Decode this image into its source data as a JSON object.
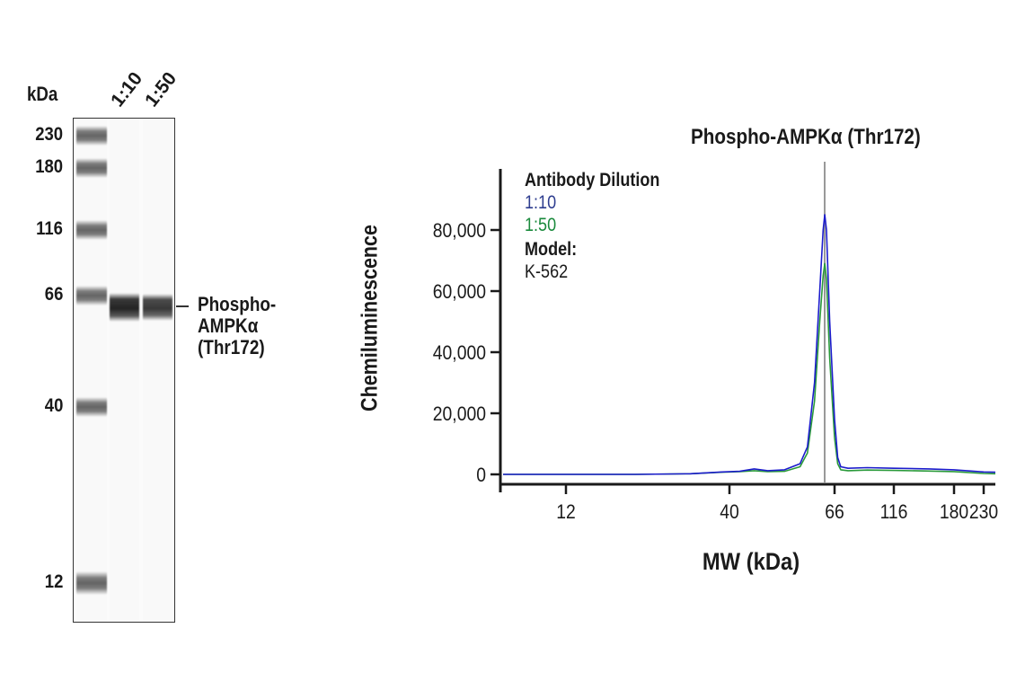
{
  "gel": {
    "unit_label": "kDa",
    "lanes": [
      "1:10",
      "1:50"
    ],
    "markers": [
      {
        "label": "230",
        "y": 150
      },
      {
        "label": "180",
        "y": 186
      },
      {
        "label": "116",
        "y": 255
      },
      {
        "label": "66",
        "y": 328
      },
      {
        "label": "40",
        "y": 452
      },
      {
        "label": "12",
        "y": 648
      }
    ],
    "target_label_lines": [
      "Phospho-",
      "AMPKα",
      "(Thr172)"
    ]
  },
  "chart_data": {
    "type": "line",
    "title": "Phospho-AMPKα (Thr172)",
    "xlabel": "MW (kDa)",
    "ylabel": "Chemiluminescence",
    "x_scale": "log",
    "x_ticks": [
      12,
      40,
      66,
      116,
      180,
      230
    ],
    "x_tick_labels": [
      "12",
      "40",
      "66",
      "116",
      "180",
      "230"
    ],
    "y_ticks": [
      0,
      20000,
      40000,
      60000,
      80000
    ],
    "y_tick_labels": [
      "0",
      "20,000",
      "40,000",
      "60,000",
      "80,000"
    ],
    "ylim": [
      0,
      92000
    ],
    "grid": false,
    "reference_line_x": 63,
    "legend": {
      "title": "Antibody Dilution",
      "entries": [
        {
          "label": "1:10",
          "color": "#2e3d8f"
        },
        {
          "label": "1:50",
          "color": "#1a8a3c"
        }
      ],
      "model_label": "Model:",
      "model_value": "K-562"
    },
    "series": [
      {
        "name": "1:10",
        "color": "#1c1ccc",
        "x": [
          7,
          12,
          20,
          30,
          38,
          42,
          45,
          48,
          52,
          56,
          58,
          60,
          61.5,
          62.5,
          63,
          63.5,
          64.5,
          66,
          68,
          70,
          75,
          90,
          116,
          150,
          180,
          230,
          250
        ],
        "y": [
          0,
          0,
          0,
          200,
          800,
          1000,
          1800,
          1200,
          1500,
          3500,
          9000,
          30000,
          60000,
          80000,
          85000,
          80000,
          50000,
          18000,
          5500,
          2500,
          2000,
          2200,
          2000,
          1800,
          1500,
          800,
          700
        ]
      },
      {
        "name": "1:50",
        "color": "#2a9a3a",
        "x": [
          7,
          12,
          20,
          30,
          38,
          42,
          45,
          48,
          52,
          56,
          58,
          60,
          61.5,
          62.5,
          63,
          63.5,
          64.5,
          66,
          68,
          70,
          75,
          90,
          116,
          150,
          180,
          230,
          250
        ],
        "y": [
          0,
          0,
          0,
          200,
          700,
          900,
          1200,
          900,
          1000,
          2500,
          7000,
          24000,
          50000,
          65000,
          69000,
          64000,
          38000,
          12000,
          3500,
          1500,
          1200,
          1400,
          1300,
          1100,
          900,
          300,
          200
        ]
      }
    ]
  }
}
